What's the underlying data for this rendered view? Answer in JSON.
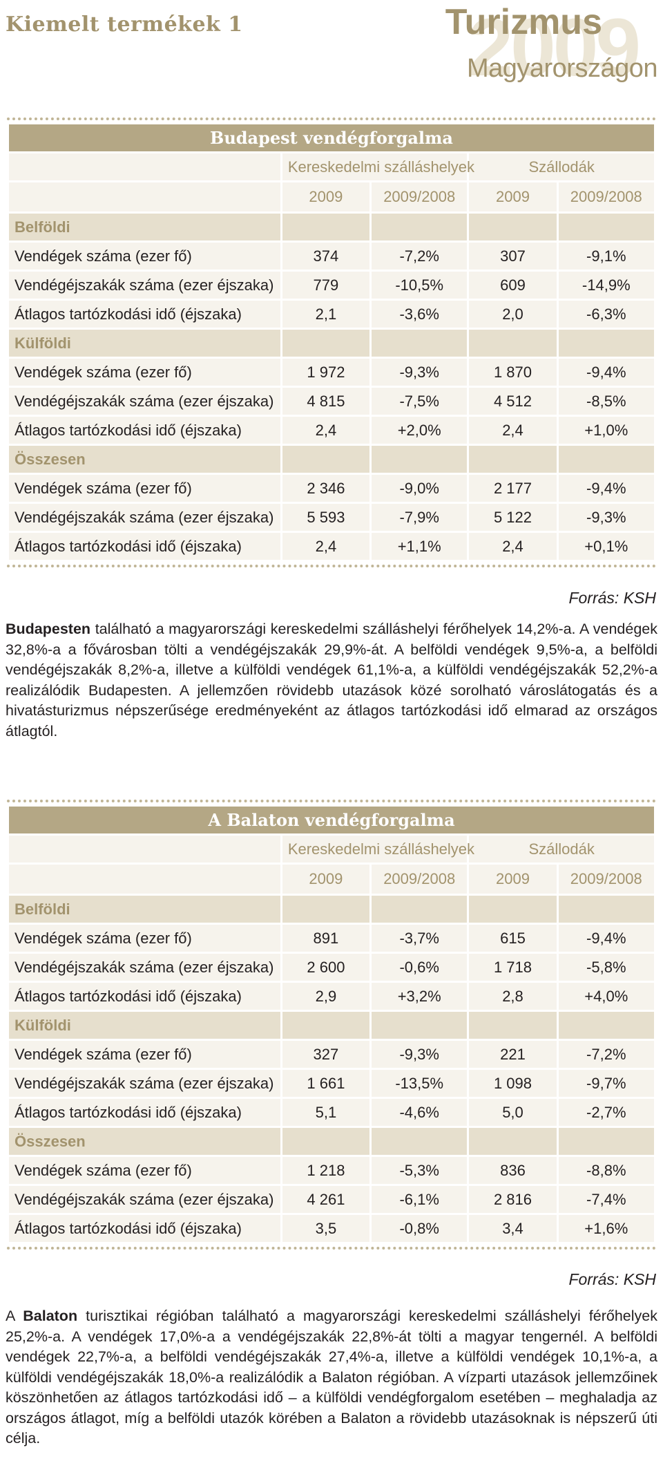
{
  "header": {
    "section": "Kiemelt termékek 1",
    "brand_title": "Turizmus",
    "brand_year": "2009",
    "brand_subtitle": "Magyarországon"
  },
  "tables": [
    {
      "title": "Budapest vendégforgalma",
      "group_headers": [
        "Kereskedelmi szálláshelyek",
        "Szállodák"
      ],
      "year_headers": [
        "2009",
        "2009/2008",
        "2009",
        "2009/2008"
      ],
      "sections": [
        {
          "name": "Belföldi",
          "rows": [
            {
              "label": "Vendégek száma (ezer fő)",
              "values": [
                "374",
                "-7,2%",
                "307",
                "-9,1%"
              ]
            },
            {
              "label": "Vendégéjszakák száma (ezer éjszaka)",
              "values": [
                "779",
                "-10,5%",
                "609",
                "-14,9%"
              ]
            },
            {
              "label": "Átlagos tartózkodási idő (éjszaka)",
              "values": [
                "2,1",
                "-3,6%",
                "2,0",
                "-6,3%"
              ]
            }
          ]
        },
        {
          "name": "Külföldi",
          "rows": [
            {
              "label": "Vendégek száma (ezer fő)",
              "values": [
                "1 972",
                "-9,3%",
                "1 870",
                "-9,4%"
              ]
            },
            {
              "label": "Vendégéjszakák száma (ezer éjszaka)",
              "values": [
                "4 815",
                "-7,5%",
                "4 512",
                "-8,5%"
              ]
            },
            {
              "label": "Átlagos tartózkodási idő (éjszaka)",
              "values": [
                "2,4",
                "+2,0%",
                "2,4",
                "+1,0%"
              ]
            }
          ]
        },
        {
          "name": "Összesen",
          "rows": [
            {
              "label": "Vendégek száma (ezer fő)",
              "values": [
                "2 346",
                "-9,0%",
                "2 177",
                "-9,4%"
              ]
            },
            {
              "label": "Vendégéjszakák száma (ezer éjszaka)",
              "values": [
                "5 593",
                "-7,9%",
                "5 122",
                "-9,3%"
              ]
            },
            {
              "label": "Átlagos tartózkodási idő (éjszaka)",
              "values": [
                "2,4",
                "+1,1%",
                "2,4",
                "+0,1%"
              ]
            }
          ]
        }
      ],
      "source": "Forrás: KSH"
    },
    {
      "title": "A Balaton vendégforgalma",
      "group_headers": [
        "Kereskedelmi szálláshelyek",
        "Szállodák"
      ],
      "year_headers": [
        "2009",
        "2009/2008",
        "2009",
        "2009/2008"
      ],
      "sections": [
        {
          "name": "Belföldi",
          "rows": [
            {
              "label": "Vendégek száma (ezer fő)",
              "values": [
                "891",
                "-3,7%",
                "615",
                "-9,4%"
              ]
            },
            {
              "label": "Vendégéjszakák száma (ezer éjszaka)",
              "values": [
                "2 600",
                "-0,6%",
                "1 718",
                "-5,8%"
              ]
            },
            {
              "label": "Átlagos tartózkodási idő (éjszaka)",
              "values": [
                "2,9",
                "+3,2%",
                "2,8",
                "+4,0%"
              ]
            }
          ]
        },
        {
          "name": "Külföldi",
          "rows": [
            {
              "label": "Vendégek száma (ezer fő)",
              "values": [
                "327",
                "-9,3%",
                "221",
                "-7,2%"
              ]
            },
            {
              "label": "Vendégéjszakák száma (ezer éjszaka)",
              "values": [
                "1 661",
                "-13,5%",
                "1 098",
                "-9,7%"
              ]
            },
            {
              "label": "Átlagos tartózkodási idő (éjszaka)",
              "values": [
                "5,1",
                "-4,6%",
                "5,0",
                "-2,7%"
              ]
            }
          ]
        },
        {
          "name": "Összesen",
          "rows": [
            {
              "label": "Vendégek száma (ezer fő)",
              "values": [
                "1 218",
                "-5,3%",
                "836",
                "-8,8%"
              ]
            },
            {
              "label": "Vendégéjszakák száma (ezer éjszaka)",
              "values": [
                "4 261",
                "-6,1%",
                "2 816",
                "-7,4%"
              ]
            },
            {
              "label": "Átlagos tartózkodási idő (éjszaka)",
              "values": [
                "3,5",
                "-0,8%",
                "3,4",
                "+1,6%"
              ]
            }
          ]
        }
      ],
      "source": "Forrás: KSH"
    }
  ],
  "paragraphs": [
    {
      "lead": "",
      "bold": "Budapesten",
      "text": " található a magyarországi kereskedelmi szálláshelyi férőhelyek 14,2%-a. A vendégek 32,8%-a a fővárosban tölti a vendégéjszakák 29,9%-át. A belföldi vendégek 9,5%-a, a belföldi vendégéjszakák 8,2%-a, illetve a külföldi vendégek 61,1%-a, a külföldi vendégéjszakák 52,2%-a realizálódik Budapesten. A jellemzően rövidebb utazások közé sorolható városlátogatás és a hivatásturizmus népszerűsége eredményeként az átlagos tartózkodási idő elmarad az országos átlagtól."
    },
    {
      "lead": "A ",
      "bold": "Balaton",
      "text": " turisztikai régióban található a magyarországi kereskedelmi szálláshelyi férőhelyek 25,2%-a. A vendégek 17,0%-a a vendégéjszakák 22,8%-át tölti a magyar tengernél. A belföldi vendégek 22,7%-a, a belföldi vendégéjszakák 27,4%-a, illetve a külföldi vendégek 10,1%-a, a külföldi vendégéjszakák 18,0%-a realizálódik a Balaton régióban. A vízparti utazások jellemzőinek köszönhetően az átlagos tartózkodási idő – a külföldi vendégforgalom esetében – meghaladja az országos átlagot, míg a belföldi utazók körében a Balaton a rövidebb utazásoknak is népszerű úti célja."
    }
  ]
}
